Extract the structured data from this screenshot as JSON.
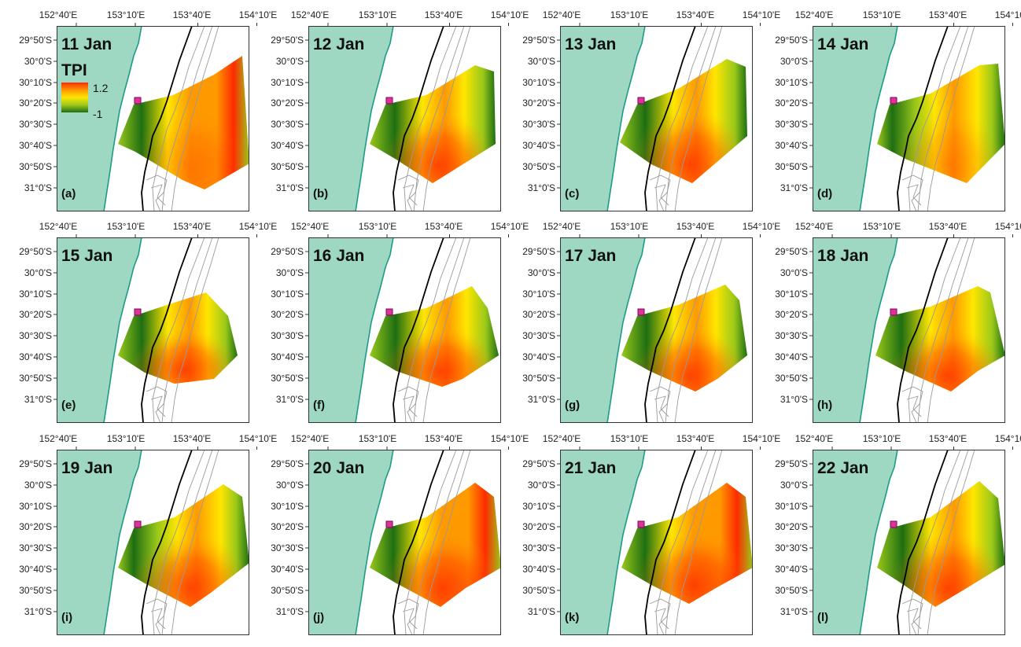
{
  "figure": {
    "x_ticks": [
      "152°40'E",
      "153°10'E",
      "153°40'E",
      "154°10'E"
    ],
    "y_ticks": [
      "29°50'S",
      "30°0'S",
      "30°10'S",
      "30°20'S",
      "30°30'S",
      "30°40'S",
      "30°50'S",
      "31°0'S"
    ],
    "legend": {
      "title": "TPI",
      "max_label": "1.2",
      "min_label": "-1",
      "gradient": [
        "#ff2b00",
        "#ff9900",
        "#ffe600",
        "#9ac81a",
        "#1e6e12"
      ]
    },
    "colors": {
      "land": "#9ed8c2",
      "coast": "#1c9c86",
      "shelf_break": "#000000",
      "isobath": "#9a9a9a",
      "site_marker": "#e0309c"
    },
    "panels": [
      {
        "date": "11 Jan",
        "letter": "(a)"
      },
      {
        "date": "12 Jan",
        "letter": "(b)"
      },
      {
        "date": "13 Jan",
        "letter": "(c)"
      },
      {
        "date": "14 Jan",
        "letter": "(d)"
      },
      {
        "date": "15 Jan",
        "letter": "(e)"
      },
      {
        "date": "16 Jan",
        "letter": "(f)"
      },
      {
        "date": "17 Jan",
        "letter": "(g)"
      },
      {
        "date": "18 Jan",
        "letter": "(h)"
      },
      {
        "date": "19 Jan",
        "letter": "(i)"
      },
      {
        "date": "20 Jan",
        "letter": "(j)"
      },
      {
        "date": "21 Jan",
        "letter": "(k)"
      },
      {
        "date": "22 Jan",
        "letter": "(l)"
      }
    ]
  }
}
